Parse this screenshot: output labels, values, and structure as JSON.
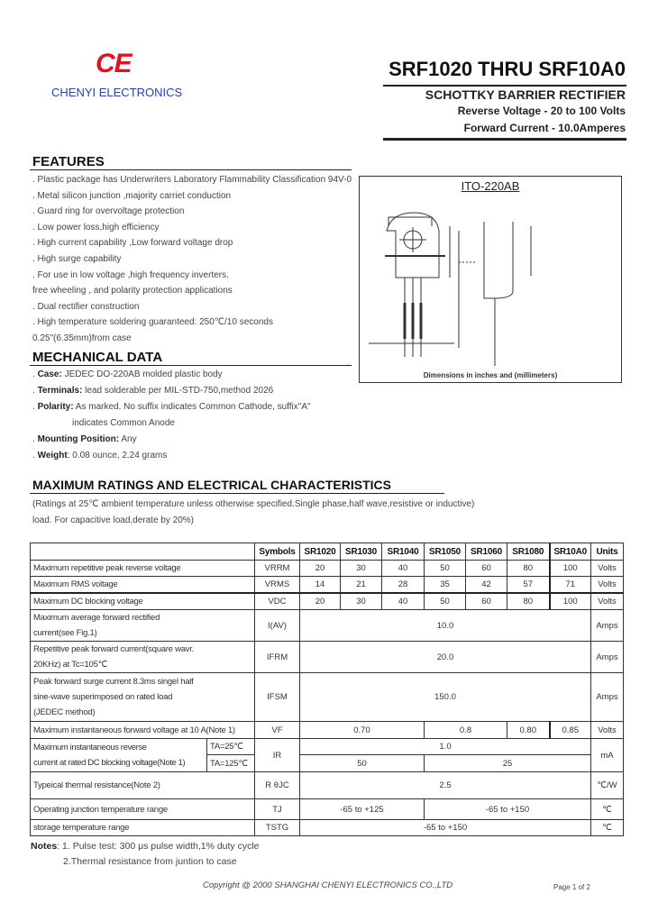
{
  "header": {
    "logo_mark": "CE",
    "company": "CHENYI ELECTRONICS",
    "title": "SRF1020 THRU SRF10A0",
    "subtitle": "SCHOTTKY BARRIER RECTIFIER",
    "reverse_voltage": "Reverse Voltage - 20 to 100 Volts",
    "forward_current": "Forward Current - 10.0Amperes",
    "brand_color": "#e0141e",
    "company_color": "#2a3fb0"
  },
  "features": {
    "heading": "FEATURES",
    "items": [
      ". Plastic package has Underwriters Laboratory Flammability Classification 94V-0",
      ". Metal silicon junction ,majority carriet conduction",
      ". Guard ring for overvoltage protection",
      ". Low power loss,high efficiency",
      ". High current capability ,Low forward voltage drop",
      ". High surge capability",
      ". For use in low voltage ,high frequency inverters.",
      "free wheeling , and polarity protection applications",
      ". Dual rectifier construction",
      ". High temperature soldering guaranteed: 250℃/10 seconds",
      "0.25\"(6.35mm)from case"
    ]
  },
  "package": {
    "title": "ITO-220AB",
    "caption": "Dimensions in inches and (millimeters)"
  },
  "mechanical": {
    "heading": "MECHANICAL DATA",
    "items": [
      {
        "label": "Case:",
        "text": " JEDEC DO-220AB molded plastic body"
      },
      {
        "label": "Terminals:",
        "text": " lead solderable per MIL-STD-750,method 2026"
      },
      {
        "label": "Polarity:",
        "text": " As marked. No suffix indicates Common Cathode, suffix\"A\""
      },
      {
        "label": "",
        "text": "indicates Common Anode"
      },
      {
        "label": "Mounting Position:",
        "text": " Any"
      },
      {
        "label": "Weight",
        "text": ": 0.08 ounce, 2.24 grams"
      }
    ]
  },
  "ratings": {
    "heading": "MAXIMUM RATINGS AND ELECTRICAL CHARACTERISTICS",
    "note1": "(Ratings at 25℃ ambient temperature unless otherwise specified.Single phase,half wave,resistive or inductive)",
    "note2": "load. For capacitive load,derate by 20%)"
  },
  "table": {
    "headers": [
      "Symbols",
      "SR1020",
      "SR1030",
      "SR1040",
      "SR1050",
      "SR1060",
      "SR1080",
      "SR10A0",
      "Units"
    ],
    "vrrm": {
      "label": "Maximum repetitive peak reverse voltage",
      "sym": "VRRM",
      "values": [
        "20",
        "30",
        "40",
        "50",
        "60",
        "80",
        "100"
      ],
      "unit": "Volts"
    },
    "vrms": {
      "label": "Maximum RMS voltage",
      "sym": "VRMS",
      "values": [
        "14",
        "21",
        "28",
        "35",
        "42",
        "57",
        "71"
      ],
      "unit": "Volts"
    },
    "vdc": {
      "label": "Maximum DC blocking voltage",
      "sym": "VDC",
      "values": [
        "20",
        "30",
        "40",
        "50",
        "60",
        "80",
        "100"
      ],
      "unit": "Volts"
    },
    "iav": {
      "label1": "Maximum average forward rectified",
      "label2": "current(see Fig.1)",
      "sym": "I(AV)",
      "value": "10.0",
      "unit": "Amps"
    },
    "ifrm": {
      "label1": "Repetitive peak forward current(square wavr.",
      "label2": "20KHz) at Tc=105℃",
      "sym": "IFRM",
      "value": "20.0",
      "unit": "Amps"
    },
    "ifsm": {
      "label1": "Peak forward surge current 8.3ms singel half",
      "label2": "sine-wave superimposed on rated load",
      "label3": "(JEDEC method)",
      "sym": "IFSM",
      "value": "150.0",
      "unit": "Amps"
    },
    "vf": {
      "label": "Maximum instantaneous forward voltage at 10 A(Note 1)",
      "sym": "VF",
      "v1": "0.70",
      "v2": "0.8",
      "v3": "0.80",
      "v4": "0.85",
      "unit": "Volts"
    },
    "ir": {
      "label1": "Maximum instantaneous reverse",
      "label2": "current at rated DC blocking  voltage(Note 1)",
      "ta1": "TA=25℃",
      "ta2": "TA=125℃",
      "sym": "IR",
      "v25": "1.0",
      "v125a": "50",
      "v125b": "25",
      "unit": "mA"
    },
    "rth": {
      "label": "Typeical thermal resistance(Note 2)",
      "sym": "R θJC",
      "value": "2.5",
      "unit": "℃/W"
    },
    "tj": {
      "label": "Operating junction temperature range",
      "sym": "TJ",
      "v1": "-65 to +125",
      "v2": "-65 to +150",
      "unit": "℃"
    },
    "tstg": {
      "label": "storage temperature range",
      "sym": "TSTG",
      "value": "-65 to +150",
      "unit": "℃"
    }
  },
  "notes": {
    "label": "Notes",
    "n1": ": 1. Pulse test: 300 μs   pulse width,1% duty cycle",
    "n2": "2.Thermal resistance from juntion to case"
  },
  "footer": {
    "copyright": "Copyright @ 2000 SHANGHAI CHENYI ELECTRONICS CO.,LTD",
    "page": "Page 1 of 2"
  }
}
